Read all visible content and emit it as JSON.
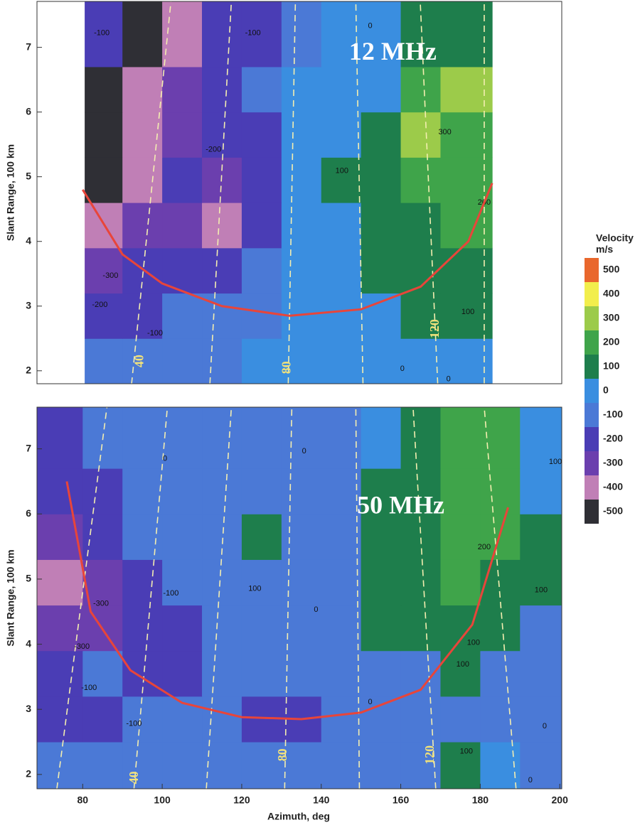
{
  "chart_data": [
    {
      "type": "heatmap",
      "ylabel": "Slant Range, 100 km",
      "xlim": [
        68.5,
        200.5
      ],
      "ylim": [
        1.8,
        7.71
      ],
      "yticks": [
        2,
        3,
        4,
        5,
        6,
        7
      ],
      "x_edges": [
        80.5,
        90,
        100,
        110,
        120,
        130,
        140,
        150,
        160,
        170,
        183
      ],
      "y_edges": [
        1.8,
        2.5,
        3.2,
        3.9,
        4.6,
        5.3,
        6.0,
        6.7,
        7.71
      ],
      "z": [
        [
          -100,
          -100,
          -100,
          -100,
          0,
          0,
          0,
          0,
          0,
          0
        ],
        [
          -200,
          -200,
          -100,
          -100,
          -100,
          0,
          0,
          0,
          100,
          100
        ],
        [
          -300,
          -200,
          -200,
          -200,
          -100,
          0,
          0,
          100,
          100,
          100
        ],
        [
          -400,
          -300,
          -300,
          -400,
          -200,
          0,
          0,
          100,
          100,
          200
        ],
        [
          -500,
          -400,
          -200,
          -300,
          -200,
          0,
          100,
          100,
          200,
          200
        ],
        [
          -500,
          -400,
          -300,
          -200,
          -200,
          0,
          0,
          100,
          300,
          200
        ],
        [
          -500,
          -400,
          -300,
          -200,
          -100,
          0,
          0,
          0,
          200,
          300
        ],
        [
          -200,
          -500,
          -400,
          -200,
          -200,
          -100,
          0,
          0,
          100,
          100
        ]
      ],
      "guides": {
        "x_bottom": [
          92.3,
          112,
          131.7,
          150.5,
          169.3,
          181
        ],
        "x_top": [
          102.2,
          117.4,
          133.5,
          148.7,
          164.9,
          181
        ]
      },
      "beam_labels": [
        {
          "text": "40",
          "x": 94.5,
          "y": 2.15
        },
        {
          "text": "80",
          "x": 131.5,
          "y": 2.05
        },
        {
          "text": "120",
          "x": 168.8,
          "y": 2.65
        }
      ],
      "curve": {
        "color": "#e8453a",
        "x": [
          80,
          90,
          100,
          115,
          132,
          150,
          165,
          177,
          183
        ],
        "y": [
          4.8,
          3.8,
          3.35,
          3.0,
          2.85,
          2.95,
          3.3,
          4.0,
          4.9
        ]
      },
      "annotations": [
        {
          "text": "12 MHz",
          "x": 158,
          "y": 6.9
        }
      ],
      "contour_labels": [
        {
          "text": "-100",
          "x": 84.8,
          "y": 7.22
        },
        {
          "text": "-100",
          "x": 122.8,
          "y": 7.22
        },
        {
          "text": "0",
          "x": 152.3,
          "y": 7.33
        },
        {
          "text": "-200",
          "x": 112.9,
          "y": 5.42
        },
        {
          "text": "100",
          "x": 145.2,
          "y": 5.09
        },
        {
          "text": "300",
          "x": 171.1,
          "y": 5.69
        },
        {
          "text": "200",
          "x": 181,
          "y": 4.6
        },
        {
          "text": "-300",
          "x": 87,
          "y": 3.47
        },
        {
          "text": "-200",
          "x": 84.3,
          "y": 3.02
        },
        {
          "text": "-100",
          "x": 98.2,
          "y": 2.58
        },
        {
          "text": "100",
          "x": 176.9,
          "y": 2.91
        },
        {
          "text": "0",
          "x": 160.4,
          "y": 2.03
        },
        {
          "text": "0",
          "x": 172,
          "y": 1.87
        }
      ],
      "colorbar": {
        "title": [
          "Velocity",
          "m/s"
        ],
        "ticks": [
          500,
          400,
          300,
          200,
          100,
          0,
          -100,
          -200,
          -300,
          -400,
          -500
        ],
        "colors": [
          "#e9672d",
          "#f2ee4c",
          "#9ccb4a",
          "#3fa44a",
          "#1e7e4c",
          "#3a8ee0",
          "#4b79d6",
          "#4a3db5",
          "#6b3fae",
          "#c07fb6",
          "#2f2f35"
        ]
      }
    },
    {
      "type": "heatmap",
      "ylabel": "Slant Range, 100 km",
      "xlabel": "Azimuth, deg",
      "xlim": [
        68.5,
        200.5
      ],
      "ylim": [
        1.78,
        7.64
      ],
      "xticks": [
        80,
        100,
        120,
        140,
        160,
        180,
        200
      ],
      "yticks": [
        2,
        3,
        4,
        5,
        6,
        7
      ],
      "x_edges": [
        68.5,
        80,
        90,
        100,
        110,
        120,
        130,
        140,
        150,
        160,
        170,
        180,
        190,
        200.5
      ],
      "y_edges": [
        1.78,
        2.5,
        3.2,
        3.9,
        4.6,
        5.3,
        6.0,
        6.7,
        7.64
      ],
      "z": [
        [
          -100,
          -100,
          -100,
          -100,
          -100,
          -100,
          -100,
          -100,
          -100,
          -100,
          100,
          0,
          -100
        ],
        [
          -200,
          -200,
          -100,
          -100,
          -100,
          -200,
          -200,
          -100,
          -100,
          -100,
          -100,
          -100,
          -100
        ],
        [
          -200,
          -100,
          -200,
          -200,
          -100,
          -100,
          -100,
          -100,
          -100,
          -100,
          100,
          -100,
          -100
        ],
        [
          -300,
          -300,
          -200,
          -200,
          -100,
          -100,
          -100,
          -100,
          100,
          100,
          100,
          100,
          -100
        ],
        [
          -400,
          -300,
          -200,
          -100,
          -100,
          -100,
          -100,
          -100,
          100,
          100,
          200,
          100,
          100
        ],
        [
          -300,
          -200,
          -100,
          -100,
          -100,
          100,
          -100,
          -100,
          100,
          100,
          200,
          200,
          100
        ],
        [
          -200,
          -200,
          -100,
          -100,
          -100,
          -100,
          -100,
          -100,
          100,
          100,
          200,
          200,
          0
        ],
        [
          -200,
          -100,
          -100,
          -100,
          -100,
          -100,
          -100,
          -100,
          0,
          100,
          200,
          200,
          0
        ]
      ],
      "guides": {
        "x_bottom": [
          73.5,
          92.9,
          111.1,
          130.8,
          149.6,
          168.8,
          189
        ],
        "x_top": [
          86.1,
          101.3,
          117.4,
          132.6,
          148.7,
          163.1,
          181
        ]
      },
      "beam_labels": [
        {
          "text": "40",
          "x": 93.2,
          "y": 1.95
        },
        {
          "text": "80",
          "x": 130.5,
          "y": 2.3
        },
        {
          "text": "120",
          "x": 167.6,
          "y": 2.3
        }
      ],
      "curve": {
        "color": "#e8453a",
        "x": [
          76,
          82,
          92,
          105,
          120,
          135,
          150,
          165,
          178,
          187
        ],
        "y": [
          6.5,
          4.5,
          3.6,
          3.1,
          2.88,
          2.85,
          2.95,
          3.3,
          4.3,
          6.1
        ]
      },
      "annotations": [
        {
          "text": "50 MHz",
          "x": 160,
          "y": 6.1
        }
      ],
      "contour_labels": [
        {
          "text": "0",
          "x": 100.7,
          "y": 6.85
        },
        {
          "text": "0",
          "x": 135.7,
          "y": 6.96
        },
        {
          "text": "100",
          "x": 123.3,
          "y": 4.85
        },
        {
          "text": "-100",
          "x": 102.2,
          "y": 4.78
        },
        {
          "text": "0",
          "x": 138.7,
          "y": 4.53
        },
        {
          "text": "-300",
          "x": 84.6,
          "y": 4.62
        },
        {
          "text": "-300",
          "x": 79.8,
          "y": 3.96
        },
        {
          "text": "-100",
          "x": 81.6,
          "y": 3.33
        },
        {
          "text": "-100",
          "x": 92.9,
          "y": 2.78
        },
        {
          "text": "200",
          "x": 181,
          "y": 5.49
        },
        {
          "text": "100",
          "x": 195.3,
          "y": 4.83
        },
        {
          "text": "100",
          "x": 178.3,
          "y": 4.02
        },
        {
          "text": "100",
          "x": 175.6,
          "y": 3.69
        },
        {
          "text": "0",
          "x": 152.3,
          "y": 3.11
        },
        {
          "text": "0",
          "x": 196.2,
          "y": 2.74
        },
        {
          "text": "100",
          "x": 176.5,
          "y": 2.35
        },
        {
          "text": "0",
          "x": 192.6,
          "y": 1.91
        },
        {
          "text": "100",
          "x": 198.9,
          "y": 6.8
        }
      ]
    }
  ]
}
